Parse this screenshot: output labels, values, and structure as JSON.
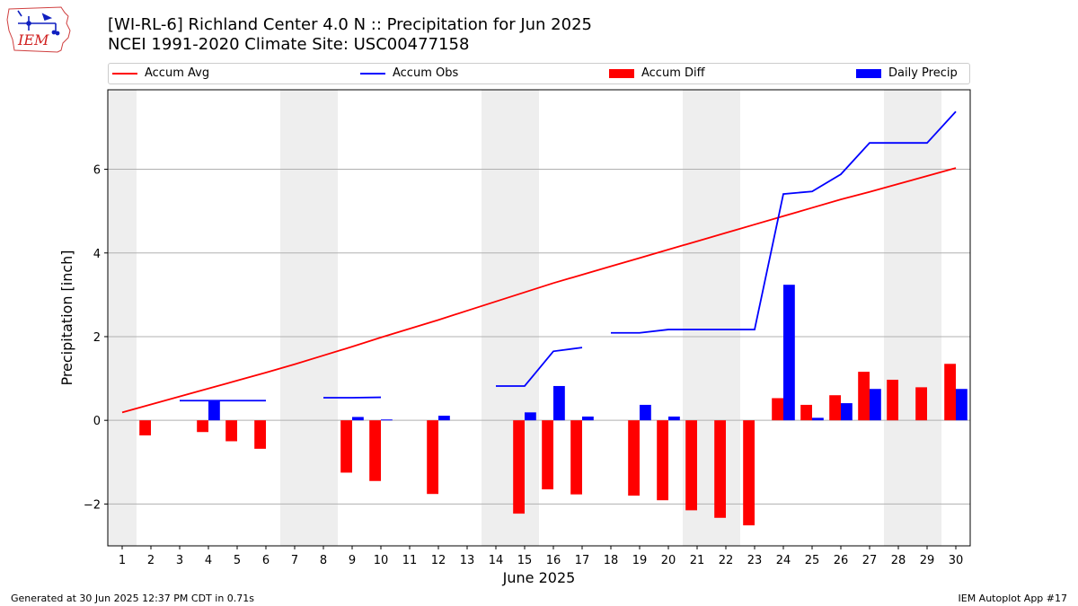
{
  "header": {
    "title_line1": "[WI-RL-6] Richland Center 4.0 N :: Precipitation for Jun 2025",
    "title_line2": "NCEI 1991-2020 Climate Site: USC00477158",
    "logo_text": "IEM"
  },
  "footer": {
    "left": "Generated at 30 Jun 2025 12:37 PM CDT in 0.71s",
    "right": "IEM Autoplot App #17"
  },
  "colors": {
    "avg": "#ff0000",
    "obs": "#0000ff",
    "diff": "#ff0000",
    "daily": "#0000ff",
    "weekend_band": "#eeeeee",
    "grid": "#b0b0b0"
  },
  "legend": {
    "avg": "Accum Avg",
    "obs": "Accum Obs",
    "diff": "Accum Diff",
    "daily": "Daily Precip"
  },
  "chart_data": {
    "type": "bar",
    "title": "[WI-RL-6] Richland Center 4.0 N :: Precipitation for Jun 2025",
    "subtitle": "NCEI 1991-2020 Climate Site: USC00477158",
    "xlabel": "June 2025",
    "ylabel": "Precipitation [inch]",
    "x": [
      1,
      2,
      3,
      4,
      5,
      6,
      7,
      8,
      9,
      10,
      11,
      12,
      13,
      14,
      15,
      16,
      17,
      18,
      19,
      20,
      21,
      22,
      23,
      24,
      25,
      26,
      27,
      28,
      29,
      30
    ],
    "xlim": [
      0.5,
      30.5
    ],
    "ylim": [
      -3.0,
      7.9
    ],
    "yticks": [
      -2,
      0,
      2,
      4,
      6
    ],
    "grid": "y",
    "legend_position": "top",
    "shaded_days": [
      1,
      7,
      8,
      14,
      15,
      21,
      22,
      28,
      29
    ],
    "series": [
      {
        "name": "Accum Avg",
        "kind": "line",
        "values": [
          0.19,
          0.38,
          0.57,
          0.76,
          0.95,
          1.14,
          1.34,
          1.55,
          1.76,
          1.98,
          2.19,
          2.4,
          2.62,
          2.84,
          3.06,
          3.28,
          3.48,
          3.68,
          3.88,
          4.08,
          4.28,
          4.48,
          4.68,
          4.88,
          5.08,
          5.28,
          5.46,
          5.65,
          5.84,
          6.03
        ]
      },
      {
        "name": "Accum Obs",
        "kind": "line",
        "values": [
          null,
          null,
          null,
          0.47,
          0.47,
          0.47,
          null,
          null,
          0.54,
          0.55,
          null,
          null,
          null,
          null,
          0.82,
          1.65,
          1.74,
          null,
          2.09,
          2.17,
          2.17,
          2.17,
          2.17,
          5.41,
          5.47,
          5.88,
          6.63,
          6.63,
          6.63,
          7.38
        ]
      },
      {
        "name": "Accum Diff",
        "kind": "bar",
        "values": [
          null,
          -0.36,
          null,
          -0.28,
          -0.5,
          -0.68,
          null,
          null,
          -1.25,
          -1.45,
          null,
          -1.76,
          null,
          null,
          -2.23,
          -1.65,
          -1.77,
          null,
          -1.8,
          -1.91,
          -2.15,
          -2.33,
          -2.51,
          0.53,
          0.37,
          0.6,
          1.16,
          0.97,
          0.79,
          1.35
        ]
      },
      {
        "name": "Daily Precip",
        "kind": "bar",
        "values": [
          null,
          null,
          null,
          0.47,
          null,
          null,
          null,
          null,
          0.08,
          0.02,
          null,
          0.11,
          null,
          null,
          0.19,
          0.82,
          0.09,
          null,
          0.37,
          0.09,
          null,
          null,
          null,
          3.24,
          0.06,
          0.41,
          0.75,
          null,
          null,
          0.75
        ]
      }
    ]
  }
}
